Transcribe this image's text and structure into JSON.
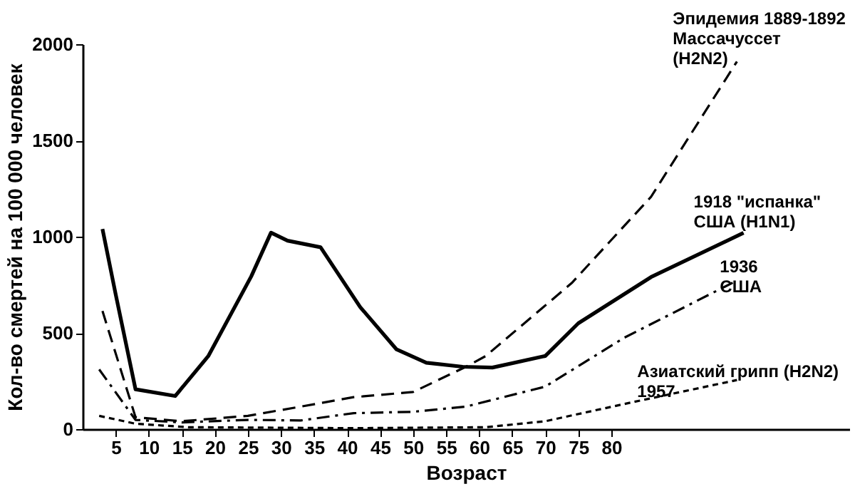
{
  "chart_data": {
    "type": "line",
    "xlabel": "Возраст",
    "ylabel": "Кол-во смертей на 100 000 человек",
    "xlim": [
      0,
      116
    ],
    "xticks": [
      5,
      10,
      15,
      20,
      25,
      30,
      35,
      40,
      45,
      50,
      55,
      60,
      65,
      70,
      75,
      80
    ],
    "ylim": [
      0,
      2000
    ],
    "yticks": [
      0,
      500,
      1000,
      1500,
      2000
    ],
    "grid": false,
    "marker": "none",
    "series": [
      {
        "name": "Эпидемия 1889-1892\nМассачуссет\n(H2N2)",
        "color": "#000000",
        "line_style": "dashed",
        "x": [
          3,
          8,
          15,
          25,
          33,
          41,
          50,
          58,
          61,
          74,
          86,
          99
        ],
        "values": [
          614,
          62,
          41,
          69,
          117,
          166,
          193,
          324,
          380,
          759,
          1207,
          1910
        ]
      },
      {
        "name": "1918 \"испанка\"\nСША (H1N1)",
        "color": "#000000",
        "line_style": "solid",
        "x": [
          3,
          5,
          8,
          14,
          19,
          25.5,
          28.5,
          31,
          36,
          42,
          47.5,
          52,
          57.5,
          62,
          70,
          75,
          86,
          100
        ],
        "values": [
          1040,
          700,
          207,
          172,
          379,
          793,
          1021,
          979,
          945,
          634,
          414,
          345,
          324,
          320,
          380,
          550,
          790,
          1020
        ]
      },
      {
        "name": "1936\nСША",
        "color": "#000000",
        "line_style": "dashdot",
        "x": [
          2.5,
          8,
          15,
          25,
          33,
          41,
          50,
          58,
          70,
          82,
          99
        ],
        "values": [
          310,
          48,
          35,
          48,
          45,
          83,
          90,
          117,
          221,
          476,
          772
        ]
      },
      {
        "name": "Азиатский грипп (H2N2)\n1957",
        "color": "#000000",
        "line_style": "dotted",
        "x": [
          2.5,
          8,
          16,
          41,
          61,
          70,
          82,
          99
        ],
        "values": [
          69,
          28,
          10,
          5,
          10,
          41,
          131,
          255
        ]
      }
    ]
  }
}
